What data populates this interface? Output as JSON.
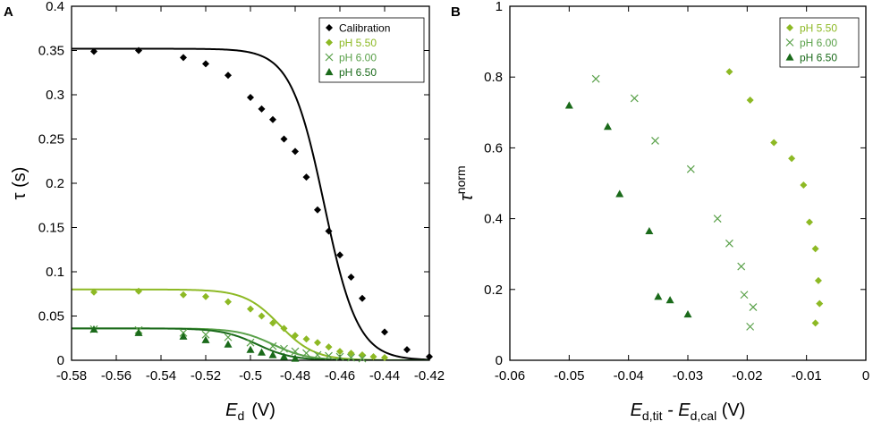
{
  "colors": {
    "calibration": "#000000",
    "ph550": "#8db924",
    "ph600": "#5aa14a",
    "ph650": "#1a6a1a",
    "axis": "#000000"
  },
  "chart_data": [
    {
      "panel": "A",
      "type": "scatter",
      "xlabel_main": "E",
      "xlabel_sub": "d",
      "xlabel_unit": "(V)",
      "ylabel": "τ (s)",
      "xlim": [
        -0.58,
        -0.42
      ],
      "ylim": [
        0,
        0.4
      ],
      "xticks": [
        -0.58,
        -0.56,
        -0.54,
        -0.52,
        -0.5,
        -0.48,
        -0.46,
        -0.44,
        -0.42
      ],
      "xtick_labels": [
        "-0.58",
        "-0.56",
        "-0.54",
        "-0.52",
        "-0.5",
        "-0.48",
        "-0.46",
        "-0.44",
        "-0.42"
      ],
      "yticks": [
        0,
        0.05,
        0.1,
        0.15,
        0.2,
        0.25,
        0.3,
        0.35,
        0.4
      ],
      "ytick_labels": [
        "0",
        "0.05",
        "0.1",
        "0.15",
        "0.2",
        "0.25",
        "0.3",
        "0.35",
        "0.4"
      ],
      "legend_position": "top-right",
      "series": [
        {
          "name": "Calibration",
          "marker": "diamond",
          "color_key": "calibration",
          "x": [
            -0.57,
            -0.55,
            -0.53,
            -0.52,
            -0.51,
            -0.5,
            -0.495,
            -0.49,
            -0.485,
            -0.48,
            -0.475,
            -0.47,
            -0.465,
            -0.46,
            -0.455,
            -0.45,
            -0.44,
            -0.43,
            -0.42
          ],
          "y": [
            0.349,
            0.35,
            0.342,
            0.335,
            0.322,
            0.297,
            0.284,
            0.272,
            0.25,
            0.236,
            0.207,
            0.17,
            0.146,
            0.119,
            0.094,
            0.07,
            0.032,
            0.012,
            0.004
          ],
          "fit": {
            "top": 0.352,
            "bottom": 0.0,
            "mid": -0.467,
            "width": 0.0075
          }
        },
        {
          "name": "pH 5.50",
          "marker": "diamond",
          "color_key": "ph550",
          "x": [
            -0.57,
            -0.55,
            -0.53,
            -0.52,
            -0.51,
            -0.5,
            -0.495,
            -0.49,
            -0.485,
            -0.48,
            -0.475,
            -0.47,
            -0.465,
            -0.46,
            -0.455,
            -0.45,
            -0.445,
            -0.44
          ],
          "y": [
            0.077,
            0.078,
            0.074,
            0.072,
            0.066,
            0.058,
            0.05,
            0.042,
            0.036,
            0.028,
            0.024,
            0.02,
            0.015,
            0.01,
            0.008,
            0.006,
            0.004,
            0.003
          ],
          "fit": {
            "top": 0.08,
            "bottom": 0.0,
            "mid": -0.487,
            "width": 0.0078
          }
        },
        {
          "name": "pH 6.00",
          "marker": "x",
          "color_key": "ph600",
          "x": [
            -0.57,
            -0.55,
            -0.53,
            -0.52,
            -0.51,
            -0.5,
            -0.49,
            -0.485,
            -0.48,
            -0.475,
            -0.47,
            -0.465,
            -0.46,
            -0.455,
            -0.45
          ],
          "y": [
            0.035,
            0.034,
            0.031,
            0.029,
            0.026,
            0.02,
            0.016,
            0.013,
            0.01,
            0.008,
            0.006,
            0.005,
            0.004,
            0.003,
            0.002
          ],
          "fit": {
            "top": 0.036,
            "bottom": 0.0,
            "mid": -0.49,
            "width": 0.0078
          }
        },
        {
          "name": "pH 6.50",
          "marker": "triangle",
          "color_key": "ph650",
          "x": [
            -0.57,
            -0.55,
            -0.53,
            -0.52,
            -0.51,
            -0.5,
            -0.495,
            -0.49,
            -0.485,
            -0.48
          ],
          "y": [
            0.035,
            0.031,
            0.027,
            0.023,
            0.018,
            0.012,
            0.009,
            0.006,
            0.004,
            0.002
          ],
          "fit": {
            "top": 0.036,
            "bottom": 0.0,
            "mid": -0.497,
            "width": 0.0078
          }
        }
      ]
    },
    {
      "panel": "B",
      "type": "scatter",
      "xlabel_parts": [
        {
          "main": "E",
          "sub": "d,tit"
        },
        {
          "main": " - E",
          "sub": "d,cal"
        },
        {
          "main": " (V)",
          "sub": ""
        }
      ],
      "ylabel_main": "τ",
      "ylabel_sup": "norm",
      "xlim": [
        -0.06,
        0
      ],
      "ylim": [
        0,
        1
      ],
      "xticks": [
        -0.06,
        -0.05,
        -0.04,
        -0.03,
        -0.02,
        -0.01,
        0
      ],
      "xtick_labels": [
        "-0.06",
        "-0.05",
        "-0.04",
        "-0.03",
        "-0.02",
        "-0.01",
        "0"
      ],
      "yticks": [
        0,
        0.2,
        0.4,
        0.6,
        0.8,
        1
      ],
      "ytick_labels": [
        "0",
        "0.2",
        "0.4",
        "0.6",
        "0.8",
        "1"
      ],
      "legend_position": "top-right",
      "series": [
        {
          "name": "pH 5.50",
          "marker": "diamond",
          "color_key": "ph550",
          "x": [
            -0.023,
            -0.0195,
            -0.0155,
            -0.0125,
            -0.0105,
            -0.0095,
            -0.0085,
            -0.008,
            -0.0078,
            -0.0085
          ],
          "y": [
            0.815,
            0.735,
            0.615,
            0.57,
            0.495,
            0.39,
            0.315,
            0.225,
            0.16,
            0.105
          ]
        },
        {
          "name": "pH 6.00",
          "marker": "x",
          "color_key": "ph600",
          "x": [
            -0.0455,
            -0.039,
            -0.0355,
            -0.0295,
            -0.025,
            -0.023,
            -0.021,
            -0.0205,
            -0.019,
            -0.0195
          ],
          "y": [
            0.795,
            0.74,
            0.62,
            0.54,
            0.4,
            0.33,
            0.265,
            0.185,
            0.15,
            0.095
          ]
        },
        {
          "name": "pH 6.50",
          "marker": "triangle",
          "color_key": "ph650",
          "x": [
            -0.05,
            -0.0435,
            -0.0415,
            -0.0365,
            -0.035,
            -0.033,
            -0.03
          ],
          "y": [
            0.72,
            0.66,
            0.47,
            0.365,
            0.18,
            0.17,
            0.13
          ]
        }
      ]
    }
  ]
}
